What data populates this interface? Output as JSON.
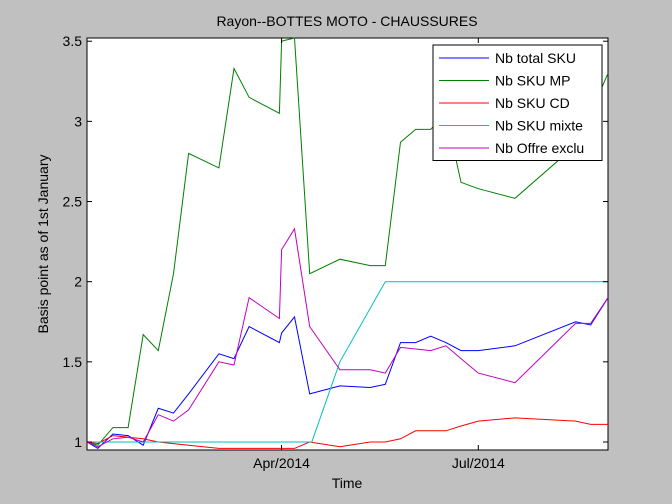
{
  "chart_data": {
    "type": "line",
    "title": "Rayon--BOTTES MOTO - CHAUSSURES",
    "xlabel": "Time",
    "ylabel": "Basis point as of 1st January",
    "xlim": [
      "2014-01-01",
      "2014-08-30"
    ],
    "ylim": [
      0.95,
      3.52
    ],
    "yticks": [
      1,
      1.5,
      2,
      2.5,
      3,
      3.5
    ],
    "yticklabels": [
      "1",
      "1.5",
      "2",
      "2.5",
      "3",
      "3.5"
    ],
    "xticks": [
      "2014-04-01",
      "2014-07-01"
    ],
    "xticklabels": [
      "Apr/2014",
      "Jul/2014"
    ],
    "grid": false,
    "legend_position": "top-right",
    "series": [
      {
        "name": "Nb total SKU",
        "color": "#0000ff",
        "x": [
          "2014-01-01",
          "2014-01-06",
          "2014-01-13",
          "2014-01-20",
          "2014-01-27",
          "2014-02-03",
          "2014-02-10",
          "2014-02-17",
          "2014-03-03",
          "2014-03-10",
          "2014-03-17",
          "2014-03-31",
          "2014-04-01",
          "2014-04-07",
          "2014-04-14",
          "2014-04-28",
          "2014-05-12",
          "2014-05-19",
          "2014-05-26",
          "2014-06-02",
          "2014-06-09",
          "2014-06-16",
          "2014-06-23",
          "2014-07-01",
          "2014-07-18",
          "2014-08-15",
          "2014-08-22",
          "2014-08-30"
        ],
        "y": [
          1.0,
          0.96,
          1.05,
          1.04,
          0.98,
          1.21,
          1.18,
          1.3,
          1.55,
          1.52,
          1.72,
          1.62,
          1.68,
          1.78,
          1.3,
          1.35,
          1.34,
          1.36,
          1.62,
          1.62,
          1.66,
          1.62,
          1.57,
          1.57,
          1.6,
          1.75,
          1.73,
          1.9
        ]
      },
      {
        "name": "Nb SKU MP",
        "color": "#008000",
        "x": [
          "2014-01-01",
          "2014-01-06",
          "2014-01-13",
          "2014-01-20",
          "2014-01-27",
          "2014-02-03",
          "2014-02-10",
          "2014-02-17",
          "2014-03-03",
          "2014-03-10",
          "2014-03-17",
          "2014-03-31",
          "2014-04-01",
          "2014-04-07",
          "2014-04-14",
          "2014-04-28",
          "2014-05-12",
          "2014-05-19",
          "2014-05-26",
          "2014-06-02",
          "2014-06-09",
          "2014-06-16",
          "2014-06-23",
          "2014-07-01",
          "2014-07-18",
          "2014-08-15",
          "2014-08-22",
          "2014-08-30"
        ],
        "y": [
          1.0,
          0.98,
          1.09,
          1.09,
          1.67,
          1.57,
          2.05,
          2.8,
          2.71,
          3.33,
          3.15,
          3.05,
          3.5,
          3.52,
          2.05,
          2.14,
          2.1,
          2.1,
          2.87,
          2.95,
          2.95,
          3.05,
          2.62,
          2.58,
          2.52,
          2.85,
          3.05,
          3.3
        ]
      },
      {
        "name": "Nb SKU CD",
        "color": "#ff0000",
        "x": [
          "2014-01-01",
          "2014-01-06",
          "2014-01-13",
          "2014-01-20",
          "2014-01-27",
          "2014-02-03",
          "2014-02-10",
          "2014-02-17",
          "2014-03-03",
          "2014-03-10",
          "2014-03-17",
          "2014-03-31",
          "2014-04-01",
          "2014-04-07",
          "2014-04-14",
          "2014-04-28",
          "2014-05-12",
          "2014-05-19",
          "2014-05-26",
          "2014-06-02",
          "2014-06-09",
          "2014-06-16",
          "2014-06-23",
          "2014-07-01",
          "2014-07-18",
          "2014-08-15",
          "2014-08-22",
          "2014-08-30"
        ],
        "y": [
          1.0,
          0.99,
          1.04,
          1.03,
          1.02,
          1.0,
          0.99,
          0.98,
          0.96,
          0.96,
          0.96,
          0.96,
          0.96,
          0.96,
          1.0,
          0.97,
          1.0,
          1.0,
          1.02,
          1.07,
          1.07,
          1.07,
          1.1,
          1.13,
          1.15,
          1.13,
          1.11,
          1.11
        ]
      },
      {
        "name": "Nb SKU mixte",
        "color": "#00bfbf",
        "x": [
          "2014-01-01",
          "2014-02-01",
          "2014-03-01",
          "2014-04-01",
          "2014-04-15",
          "2014-04-28",
          "2014-05-19",
          "2014-07-01",
          "2014-08-30"
        ],
        "y": [
          1.0,
          1.0,
          1.0,
          1.0,
          1.0,
          1.5,
          2.0,
          2.0,
          2.0
        ]
      },
      {
        "name": "Nb Offre exclu",
        "color": "#bf00bf",
        "x": [
          "2014-01-01",
          "2014-01-06",
          "2014-01-13",
          "2014-01-20",
          "2014-01-27",
          "2014-02-03",
          "2014-02-10",
          "2014-02-17",
          "2014-03-03",
          "2014-03-10",
          "2014-03-17",
          "2014-03-31",
          "2014-04-01",
          "2014-04-07",
          "2014-04-14",
          "2014-04-28",
          "2014-05-12",
          "2014-05-19",
          "2014-05-26",
          "2014-06-02",
          "2014-06-09",
          "2014-06-16",
          "2014-06-23",
          "2014-07-01",
          "2014-07-18",
          "2014-08-15",
          "2014-08-22",
          "2014-08-30"
        ],
        "y": [
          1.0,
          0.97,
          1.02,
          1.03,
          1.0,
          1.17,
          1.13,
          1.2,
          1.5,
          1.48,
          1.9,
          1.77,
          2.2,
          2.33,
          1.72,
          1.45,
          1.45,
          1.43,
          1.59,
          1.58,
          1.57,
          1.6,
          1.52,
          1.43,
          1.37,
          1.74,
          1.74,
          1.9
        ]
      }
    ]
  }
}
